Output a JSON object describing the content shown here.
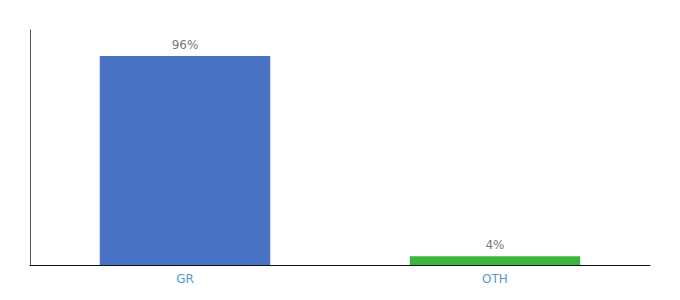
{
  "chart_data": {
    "type": "bar",
    "categories": [
      "GR",
      "OTH"
    ],
    "values": [
      96,
      4
    ],
    "colors": [
      "#4a72c4",
      "#3cb53c"
    ],
    "value_labels": [
      "96%",
      "4%"
    ],
    "data_labels": true,
    "ylim": [
      0,
      108
    ],
    "tick_labels": "x",
    "grid": false
  }
}
